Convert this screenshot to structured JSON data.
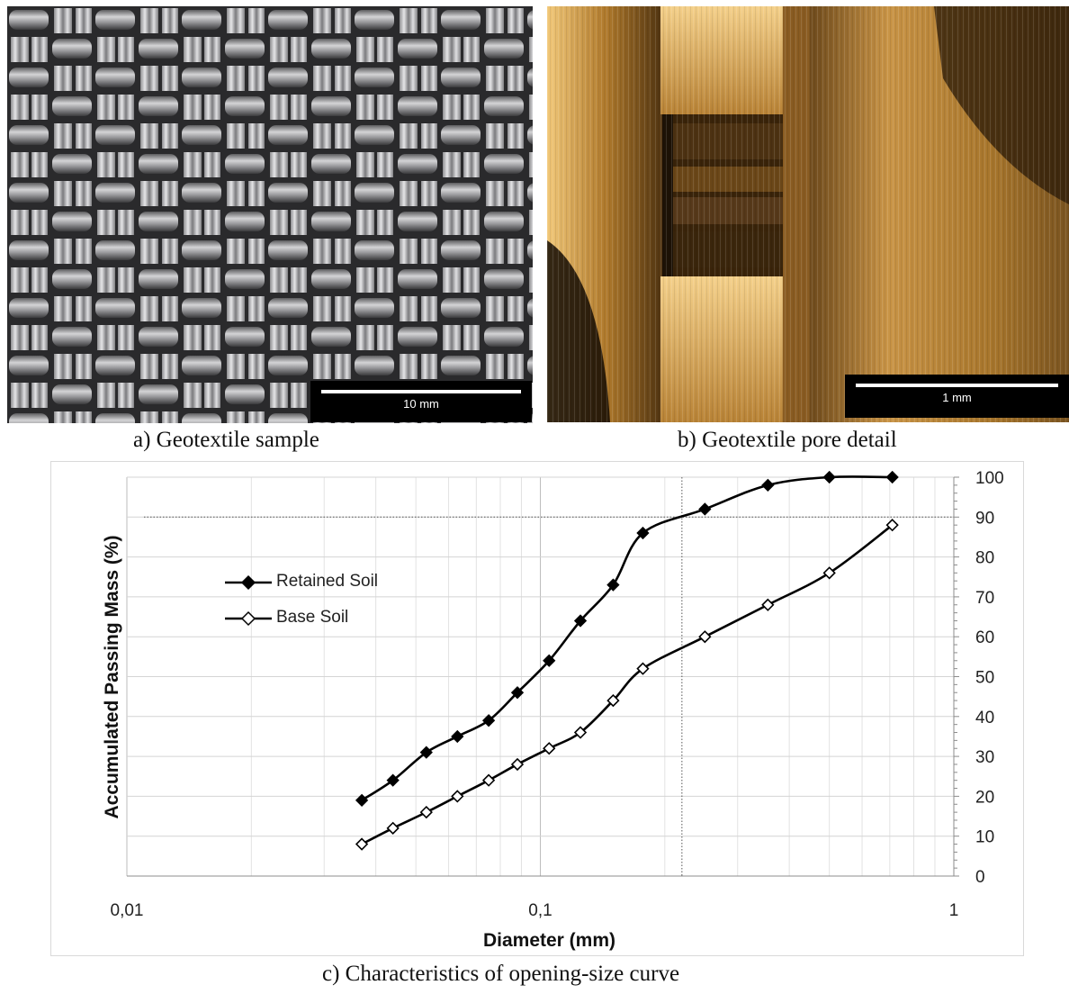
{
  "panels": {
    "a": {
      "caption": "a) Geotextile sample",
      "scale_label": "10 mm"
    },
    "b": {
      "caption": "b) Geotextile pore detail",
      "scale_label": "1 mm"
    },
    "c": {
      "caption": "c) Characteristics of opening-size curve"
    }
  },
  "chart_data": {
    "type": "line",
    "title": "",
    "xlabel": "Diameter (mm)",
    "ylabel": "Accumulated Passing Mass (%)",
    "x_scale": "log",
    "xlim": [
      0.01,
      1
    ],
    "ylim": [
      0,
      100
    ],
    "x_ticks": [
      "0,01",
      "0,1",
      "1"
    ],
    "y_ticks": [
      "0",
      "10",
      "20",
      "30",
      "40",
      "50",
      "60",
      "70",
      "80",
      "90",
      "100"
    ],
    "y_axis_side": "right",
    "grid": true,
    "legend_position": "left",
    "reference_lines": {
      "y": 90,
      "x": 0.22
    },
    "series": [
      {
        "name": "Retained Soil",
        "marker": "filled-diamond",
        "color": "#000000",
        "x": [
          0.037,
          0.044,
          0.053,
          0.063,
          0.075,
          0.088,
          0.105,
          0.125,
          0.15,
          0.177,
          0.25,
          0.355,
          0.5,
          0.71
        ],
        "y": [
          19,
          24,
          31,
          35,
          39,
          46,
          54,
          64,
          73,
          86,
          92,
          98,
          100,
          100
        ]
      },
      {
        "name": "Base Soil",
        "marker": "open-diamond",
        "color": "#000000",
        "x": [
          0.037,
          0.044,
          0.053,
          0.063,
          0.075,
          0.088,
          0.105,
          0.125,
          0.15,
          0.177,
          0.25,
          0.355,
          0.5,
          0.71
        ],
        "y": [
          8,
          12,
          16,
          20,
          24,
          28,
          32,
          36,
          44,
          52,
          60,
          68,
          76,
          88
        ]
      }
    ]
  }
}
